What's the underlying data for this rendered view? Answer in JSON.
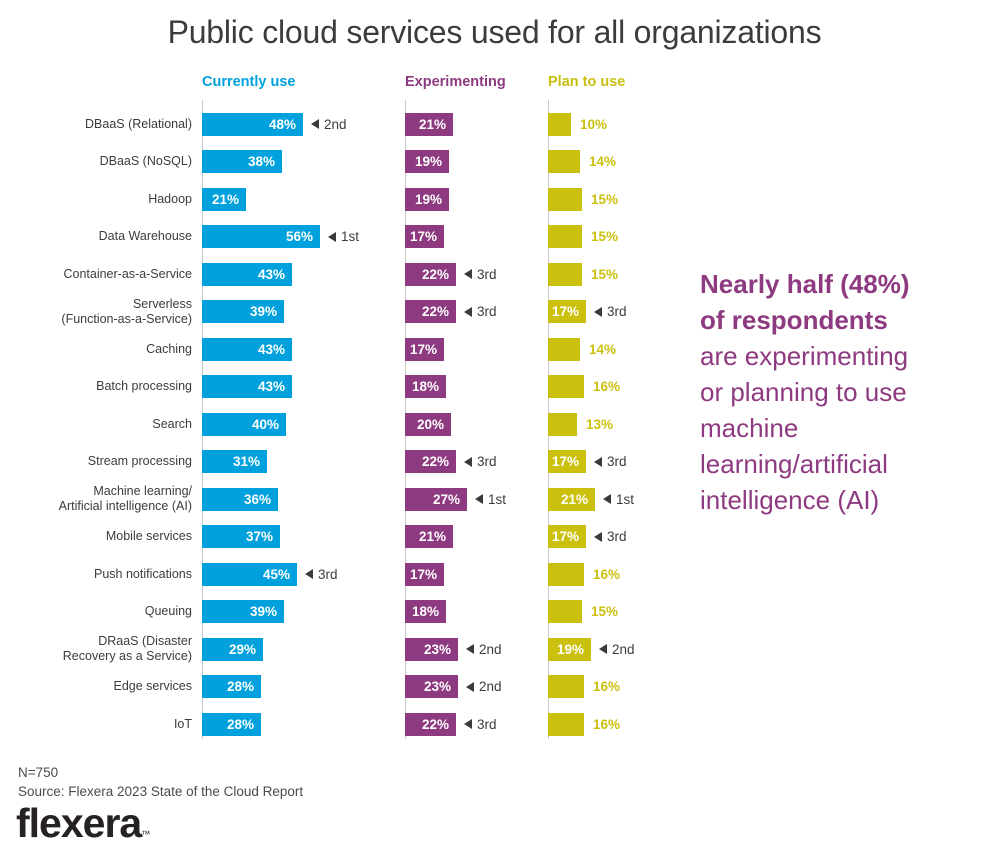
{
  "title": "Public cloud services used for all organizations",
  "columns": [
    {
      "key": "use",
      "label": "Currently use",
      "color": "#00a1dc"
    },
    {
      "key": "exp",
      "label": "Experimenting",
      "color": "#8e3a80"
    },
    {
      "key": "plan",
      "label": "Plan to use",
      "color": "#c9bf0e"
    }
  ],
  "chart_data": {
    "type": "bar",
    "orientation": "horizontal",
    "unit": "%",
    "xlim": [
      0,
      60
    ],
    "title": "Public cloud services used for all organizations",
    "categories": [
      "DBaaS (Relational)",
      "DBaaS (NoSQL)",
      "Hadoop",
      "Data Warehouse",
      "Container-as-a-Service",
      "Serverless\n(Function-as-a-Service)",
      "Caching",
      "Batch processing",
      "Search",
      "Stream processing",
      "Machine learning/\nArtificial intelligence (AI)",
      "Mobile services",
      "Push notifications",
      "Queuing",
      "DRaaS (Disaster\nRecovery as a Service)",
      "Edge services",
      "IoT"
    ],
    "series": [
      {
        "name": "Currently use",
        "color": "#00a1dc",
        "values": [
          48,
          38,
          21,
          56,
          43,
          39,
          43,
          43,
          40,
          31,
          36,
          37,
          45,
          39,
          29,
          28,
          28
        ],
        "rank_labels": [
          "2nd",
          null,
          null,
          "1st",
          null,
          null,
          null,
          null,
          null,
          null,
          null,
          null,
          "3rd",
          null,
          null,
          null,
          null
        ]
      },
      {
        "name": "Experimenting",
        "color": "#8e3a80",
        "values": [
          21,
          19,
          19,
          17,
          22,
          22,
          17,
          18,
          20,
          22,
          27,
          21,
          17,
          18,
          23,
          23,
          22
        ],
        "rank_labels": [
          null,
          null,
          null,
          null,
          "3rd",
          "3rd",
          null,
          null,
          null,
          "3rd",
          "1st",
          null,
          null,
          null,
          "2nd",
          "2nd",
          "3rd"
        ]
      },
      {
        "name": "Plan to use",
        "color": "#ccc00e",
        "values": [
          10,
          14,
          15,
          15,
          15,
          17,
          14,
          16,
          13,
          17,
          21,
          17,
          16,
          15,
          19,
          16,
          16
        ],
        "rank_labels": [
          null,
          null,
          null,
          null,
          null,
          "3rd",
          null,
          null,
          null,
          "3rd",
          "1st",
          "3rd",
          null,
          null,
          "2nd",
          null,
          null
        ]
      }
    ]
  },
  "callout": {
    "bold_lines": [
      "Nearly half (48%)",
      "of respondents"
    ],
    "lines": [
      "are experimenting",
      "or planning to use",
      "machine",
      "learning/artificial",
      "intelligence (AI)"
    ]
  },
  "footer": {
    "n": "N=750",
    "source": "Source: Flexera 2023 State of the Cloud Report",
    "logo": "flexera",
    "trademark": "™"
  }
}
